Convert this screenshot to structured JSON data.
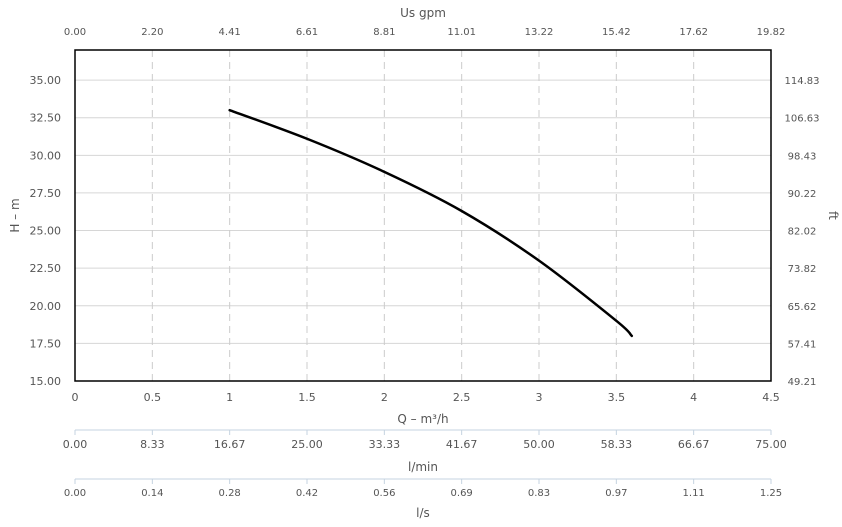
{
  "chart_data": {
    "type": "line",
    "title": "",
    "xlabel": "Q – m³/h",
    "ylabel": "H – m",
    "xlim": [
      0,
      4.5
    ],
    "ylim": [
      15,
      37
    ],
    "x_ticks": [
      "0",
      "0.5",
      "1",
      "1.5",
      "2",
      "2.5",
      "3",
      "3.5",
      "4",
      "4.5"
    ],
    "y_ticks": [
      "15.00",
      "17.50",
      "20.00",
      "22.50",
      "25.00",
      "27.50",
      "30.00",
      "32.50",
      "35.00"
    ],
    "top_axis": {
      "label": "Us gpm",
      "ticks": [
        "0.00",
        "2.20",
        "4.41",
        "6.61",
        "8.81",
        "11.01",
        "13.22",
        "15.42",
        "17.62",
        "19.82"
      ]
    },
    "right_axis": {
      "label": "ft",
      "ticks": [
        "49.21",
        "57.41",
        "65.62",
        "73.82",
        "82.02",
        "90.22",
        "98.43",
        "106.63",
        "114.83"
      ]
    },
    "bottom_axes": [
      {
        "label": "l/min",
        "ticks": [
          "0.00",
          "8.33",
          "16.67",
          "25.00",
          "33.33",
          "41.67",
          "50.00",
          "58.33",
          "66.67",
          "75.00"
        ]
      },
      {
        "label": "l/s",
        "ticks": [
          "0.00",
          "0.14",
          "0.28",
          "0.42",
          "0.56",
          "0.69",
          "0.83",
          "0.97",
          "1.11",
          "1.25"
        ]
      }
    ],
    "grid": true,
    "series": [
      {
        "color": "#000000",
        "x": [
          1.0,
          1.5,
          2.0,
          2.5,
          3.0,
          3.5,
          3.6
        ],
        "y": [
          33.0,
          31.1,
          28.9,
          26.3,
          23.0,
          19.0,
          18.0
        ]
      }
    ]
  }
}
